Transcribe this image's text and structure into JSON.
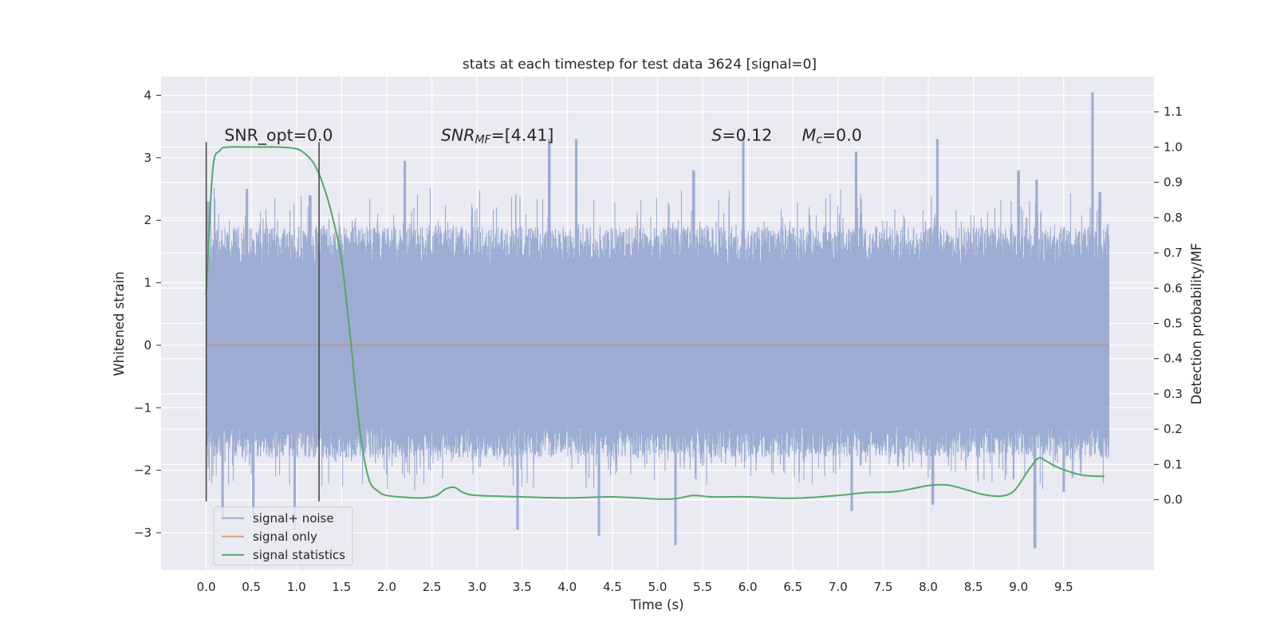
{
  "chart_data": {
    "type": "line",
    "title": "stats at each timestep for test data 3624 [signal=0]",
    "xlabel": "Time (s)",
    "ylabel": "Whitened strain",
    "y2label": "Detection probability/MF",
    "xlim": [
      -0.5,
      10.5
    ],
    "ylim": [
      -3.6,
      4.3
    ],
    "y2lim": [
      -0.2,
      1.2
    ],
    "grid": true,
    "legend_position": "lower-left",
    "xticks": [
      0.0,
      0.5,
      1.0,
      1.5,
      2.0,
      2.5,
      3.0,
      3.5,
      4.0,
      4.5,
      5.0,
      5.5,
      6.0,
      6.5,
      7.0,
      7.5,
      8.0,
      8.5,
      9.0,
      9.5
    ],
    "xtick_labels": [
      "0.0",
      "0.5",
      "1.0",
      "1.5",
      "2.0",
      "2.5",
      "3.0",
      "3.5",
      "4.0",
      "4.5",
      "5.0",
      "5.5",
      "6.0",
      "6.5",
      "7.0",
      "7.5",
      "8.0",
      "8.5",
      "9.0",
      "9.5"
    ],
    "yticks": [
      -3,
      -2,
      -1,
      0,
      1,
      2,
      3,
      4
    ],
    "ytick_labels": [
      "−3",
      "−2",
      "−1",
      "0",
      "1",
      "2",
      "3",
      "4"
    ],
    "y2ticks": [
      0.0,
      0.1,
      0.2,
      0.3,
      0.4,
      0.5,
      0.6,
      0.7,
      0.8,
      0.9,
      1.0,
      1.1
    ],
    "y2tick_labels": [
      "0.0",
      "0.1",
      "0.2",
      "0.3",
      "0.4",
      "0.5",
      "0.6",
      "0.7",
      "0.8",
      "0.9",
      "1.0",
      "1.1"
    ],
    "vlines": [
      {
        "x": 0.0,
        "y0": -2.5,
        "y1": 3.25
      },
      {
        "x": 1.25,
        "y0": -2.5,
        "y1": 3.25
      }
    ],
    "annotations": [
      {
        "x": 0.2,
        "y": 3.25,
        "segments": [
          {
            "t": "SNR_opt=0.0",
            "sub": false
          }
        ]
      },
      {
        "x": 2.6,
        "y": 3.25,
        "segments": [
          {
            "t": "SNR",
            "italic": true
          },
          {
            "t": "MF",
            "italic": true,
            "sub": true
          },
          {
            "t": "=[4.41]"
          }
        ]
      },
      {
        "x": 5.6,
        "y": 3.25,
        "segments": [
          {
            "t": "S",
            "italic": true
          },
          {
            "t": "=0.12"
          }
        ]
      },
      {
        "x": 6.6,
        "y": 3.25,
        "segments": [
          {
            "t": "M",
            "italic": true
          },
          {
            "t": "c",
            "italic": true,
            "sub": true
          },
          {
            "t": "=0.0"
          }
        ]
      }
    ],
    "series": [
      {
        "name": "signal+ noise",
        "color": "#8197c7",
        "opacity": 0.75,
        "axis": "left",
        "x_range": [
          0.0,
          10.0
        ],
        "envelope": {
          "typical_max": [
            1.3,
            1.9
          ],
          "typical_min": [
            -1.3,
            -1.8
          ],
          "spikes_up": [
            [
              0.02,
              2.3
            ],
            [
              0.45,
              2.5
            ],
            [
              1.15,
              2.4
            ],
            [
              2.2,
              2.95
            ],
            [
              3.8,
              3.3
            ],
            [
              4.1,
              3.3
            ],
            [
              5.4,
              2.8
            ],
            [
              5.95,
              3.35
            ],
            [
              7.2,
              3.1
            ],
            [
              8.1,
              3.3
            ],
            [
              9.0,
              2.8
            ],
            [
              9.2,
              2.65
            ],
            [
              9.82,
              4.05
            ],
            [
              9.9,
              2.45
            ]
          ],
          "spikes_down": [
            [
              0.18,
              -2.8
            ],
            [
              0.52,
              -2.75
            ],
            [
              0.98,
              -2.95
            ],
            [
              3.45,
              -2.95
            ],
            [
              4.35,
              -3.05
            ],
            [
              5.2,
              -3.2
            ],
            [
              7.15,
              -2.65
            ],
            [
              8.05,
              -2.55
            ],
            [
              9.18,
              -3.25
            ],
            [
              9.5,
              -2.35
            ]
          ]
        }
      },
      {
        "name": "signal only",
        "color": "#dd8452",
        "opacity": 0.75,
        "axis": "left",
        "x": [
          0.0,
          10.0
        ],
        "values": [
          0.0,
          0.0
        ]
      },
      {
        "name": "signal statistics",
        "color": "#55a868",
        "axis": "right",
        "x": [
          0.0,
          0.07,
          0.15,
          0.25,
          0.5,
          0.8,
          1.0,
          1.1,
          1.2,
          1.3,
          1.4,
          1.5,
          1.6,
          1.7,
          1.8,
          1.9,
          2.0,
          2.2,
          2.4,
          2.55,
          2.65,
          2.75,
          2.85,
          3.0,
          3.5,
          4.0,
          4.5,
          5.0,
          5.2,
          5.4,
          5.6,
          6.0,
          6.5,
          7.0,
          7.3,
          7.6,
          7.8,
          8.0,
          8.2,
          8.4,
          8.6,
          8.8,
          8.95,
          9.1,
          9.22,
          9.3,
          9.45,
          9.7,
          9.95
        ],
        "values": [
          0.58,
          0.93,
          0.99,
          1.0,
          1.0,
          1.0,
          0.995,
          0.98,
          0.95,
          0.89,
          0.8,
          0.68,
          0.45,
          0.2,
          0.06,
          0.025,
          0.012,
          0.007,
          0.005,
          0.012,
          0.03,
          0.035,
          0.02,
          0.012,
          0.008,
          0.005,
          0.008,
          0.002,
          0.003,
          0.012,
          0.008,
          0.008,
          0.004,
          0.012,
          0.02,
          0.022,
          0.03,
          0.04,
          0.042,
          0.03,
          0.015,
          0.01,
          0.025,
          0.08,
          0.118,
          0.11,
          0.09,
          0.07,
          0.066
        ]
      }
    ]
  }
}
